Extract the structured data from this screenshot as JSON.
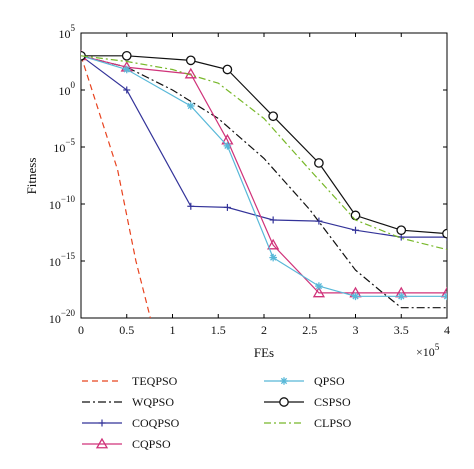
{
  "chart_data": {
    "type": "line",
    "xlabel": "FEs",
    "ylabel": "Fitness",
    "x_exponent_label": "×10",
    "x_exponent_power": "5",
    "y_scale": "log",
    "xlim": [
      0,
      4
    ],
    "ylim_exp": [
      -20,
      5
    ],
    "x_ticks": [
      "0",
      "0.5",
      "1",
      "1.5",
      "2",
      "2.5",
      "3",
      "3.5",
      "4"
    ],
    "y_ticks": [
      {
        "base": "10",
        "exp": "5",
        "value_exp": 5
      },
      {
        "base": "10",
        "exp": "0",
        "value_exp": 0
      },
      {
        "base": "10",
        "exp": "−5",
        "value_exp": -5
      },
      {
        "base": "10",
        "exp": "−10",
        "value_exp": -10
      },
      {
        "base": "10",
        "exp": "−15",
        "value_exp": -15
      },
      {
        "base": "10",
        "exp": "−20",
        "value_exp": -20
      }
    ],
    "grid": false,
    "legend_position": "bottom",
    "series": [
      {
        "name": "TEQPSO",
        "color": "#e8431f",
        "dash": "6,4",
        "marker": "none",
        "x": [
          0,
          0.2,
          0.4,
          0.6,
          0.79
        ],
        "y_exp": [
          3,
          -2,
          -7,
          -15,
          -21
        ]
      },
      {
        "name": "WQPSO",
        "color": "#111111",
        "dash": "8,3,2,3",
        "marker": "none",
        "x": [
          0,
          0.5,
          1.0,
          1.5,
          2.0,
          2.5,
          3.0,
          3.3,
          3.5,
          4.0
        ],
        "y_exp": [
          3,
          2.0,
          0,
          -2.5,
          -6.0,
          -10.5,
          -15.8,
          -17.8,
          -19.1,
          -19.1
        ]
      },
      {
        "name": "COQPSO",
        "color": "#333399",
        "dash": "",
        "marker": "plus",
        "x": [
          0,
          0.5,
          1.2,
          1.6,
          2.1,
          2.6,
          3.0,
          3.5,
          4.0
        ],
        "y_exp": [
          3,
          0,
          -10.2,
          -10.3,
          -11.4,
          -11.5,
          -12.3,
          -12.9,
          -12.9
        ]
      },
      {
        "name": "CQPSO",
        "color": "#d0337a",
        "dash": "",
        "marker": "triangle",
        "x": [
          0,
          0.5,
          1.2,
          1.6,
          2.1,
          2.6,
          3.0,
          3.5,
          4.0
        ],
        "y_exp": [
          3,
          2.0,
          1.4,
          -4.4,
          -13.6,
          -17.8,
          -17.8,
          -17.8,
          -17.8
        ]
      },
      {
        "name": "QPSO",
        "color": "#58b8d8",
        "dash": "",
        "marker": "star",
        "x": [
          0,
          0.5,
          1.2,
          1.6,
          2.1,
          2.6,
          3.0,
          3.5,
          4.0
        ],
        "y_exp": [
          3,
          1.8,
          -1.4,
          -4.9,
          -14.7,
          -17.2,
          -18.1,
          -18.1,
          -18.1
        ]
      },
      {
        "name": "CSPSO",
        "color": "#111111",
        "dash": "",
        "marker": "circle",
        "x": [
          0,
          0.5,
          1.2,
          1.6,
          2.1,
          2.6,
          3.0,
          3.5,
          4.0
        ],
        "y_exp": [
          3,
          3.0,
          2.6,
          1.8,
          -2.3,
          -6.4,
          -11.0,
          -12.3,
          -12.6
        ]
      },
      {
        "name": "CLPSO",
        "color": "#78b82a",
        "dash": "7,3,2,3",
        "marker": "none",
        "x": [
          0,
          0.5,
          1.0,
          1.5,
          2.0,
          2.5,
          3.0,
          3.5,
          4.0
        ],
        "y_exp": [
          3,
          2.5,
          1.8,
          0.6,
          -2.5,
          -7.0,
          -11.4,
          -13.0,
          -14.0
        ]
      }
    ]
  }
}
